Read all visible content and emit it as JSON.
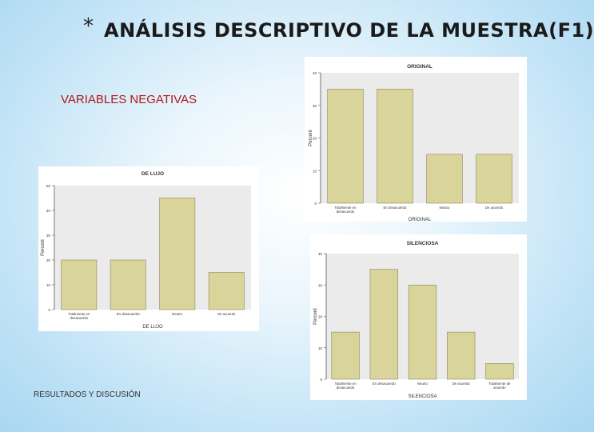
{
  "slide": {
    "asterisk": "*",
    "title": "ANÁLISIS DESCRIPTIVO DE LA MUESTRA(F1)",
    "subtitle": "VARIABLES NEGATIVAS",
    "footer": "RESULTADOS Y DISCUSIÓN"
  },
  "colors": {
    "bar_fill": "#d9d59a",
    "bar_stroke": "#8a8458",
    "plot_bg": "#ebebeb"
  },
  "chart_data": [
    {
      "type": "bar",
      "title": "DE LUJO",
      "xlabel": "DE LUJO",
      "ylabel": "Percent",
      "categories": [
        "Totalmente en desacuerdo",
        "En desacuerdo",
        "Neutro",
        "De acuerdo"
      ],
      "values": [
        20,
        20,
        45,
        15
      ],
      "ylim": [
        0,
        50
      ],
      "yticks": [
        0,
        10,
        20,
        30,
        40,
        50
      ],
      "grid": false
    },
    {
      "type": "bar",
      "title": "ORIGINAL",
      "xlabel": "ORIGINAL",
      "ylabel": "Percent",
      "categories": [
        "Totalmente en desacuerdo",
        "En desacuerdo",
        "Neutro",
        "De acuerdo"
      ],
      "values": [
        35,
        35,
        15,
        15
      ],
      "ylim": [
        0,
        40
      ],
      "yticks": [
        0,
        10,
        20,
        30,
        40
      ],
      "grid": false
    },
    {
      "type": "bar",
      "title": "SILENCIOSA",
      "xlabel": "SILENCIOSA",
      "ylabel": "Percent",
      "categories": [
        "Totalmente en desacuerdo",
        "En desacuerdo",
        "Neutro",
        "De acuerdo",
        "Totalmente de acuerdo"
      ],
      "values": [
        15,
        35,
        30,
        15,
        5
      ],
      "ylim": [
        0,
        40
      ],
      "yticks": [
        0,
        10,
        20,
        30,
        40
      ],
      "grid": false
    }
  ]
}
